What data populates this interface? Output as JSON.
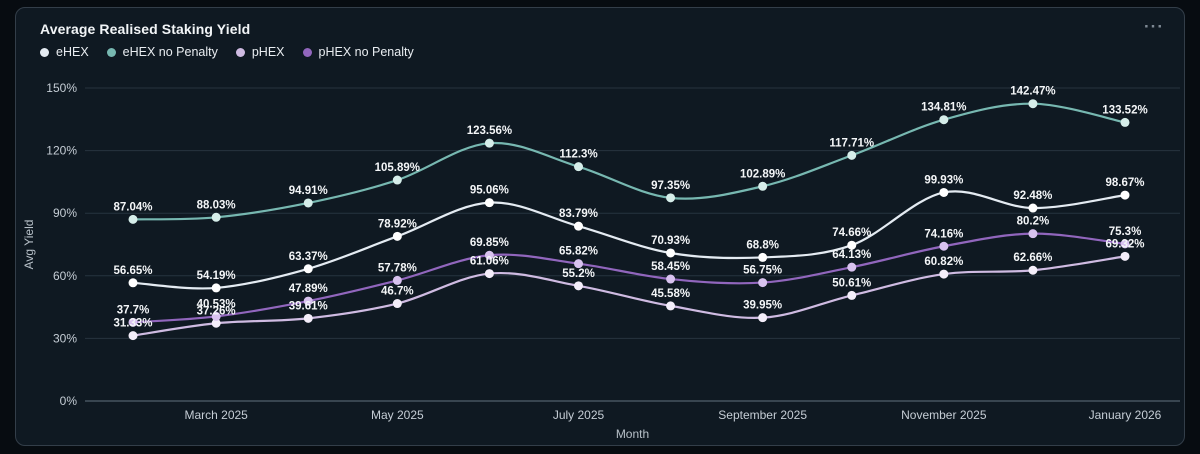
{
  "card": {
    "title": "Average Realised Staking Yield",
    "more_options_glyph": "···"
  },
  "chart_data": {
    "type": "line",
    "title": "Average Realised Staking Yield",
    "xlabel": "Month",
    "ylabel": "Avg Yield",
    "x_scale": "time",
    "n_points": 12,
    "x_tick_labels": [
      "March 2025",
      "May 2025",
      "July 2025",
      "September 2025",
      "November 2025",
      "January 2026"
    ],
    "x_tick_point_indices": [
      1,
      3,
      5,
      7,
      9,
      11
    ],
    "ylim": [
      0,
      150
    ],
    "y_tick_values": [
      0,
      30,
      60,
      90,
      120,
      150
    ],
    "y_tick_suffix": "%",
    "point_label_suffix": "%",
    "grid": "horizontal",
    "legend_position": "top-left",
    "curve": "smooth",
    "series": [
      {
        "name": "eHEX",
        "color": "#e4ebf2",
        "dot_color": "#ffffff",
        "values": [
          56.65,
          54.19,
          63.37,
          78.92,
          95.06,
          83.79,
          70.93,
          68.8,
          74.66,
          99.93,
          92.48,
          98.67
        ]
      },
      {
        "name": "eHEX no Penalty",
        "color": "#77b8b1",
        "dot_color": "#d6eeea",
        "values": [
          87.04,
          88.03,
          94.91,
          105.89,
          123.56,
          112.3,
          97.35,
          102.89,
          117.71,
          134.81,
          142.47,
          133.52
        ]
      },
      {
        "name": "pHEX",
        "color": "#cfbbe2",
        "dot_color": "#f4eefa",
        "values": [
          31.33,
          37.26,
          39.61,
          46.7,
          61.06,
          55.2,
          45.58,
          39.95,
          50.61,
          60.82,
          62.66,
          69.32
        ]
      },
      {
        "name": "pHEX no Penalty",
        "color": "#9166bd",
        "dot_color": "#d8c2ef",
        "values": [
          37.7,
          40.53,
          47.89,
          57.78,
          69.85,
          65.82,
          58.45,
          56.75,
          64.13,
          74.16,
          80.2,
          75.3
        ]
      }
    ]
  },
  "colors": {
    "page_bg": "#070c11",
    "card_bg": "#0f1922",
    "card_border": "#333e49",
    "grid_line": "#27343f",
    "axis_line": "#47545f",
    "tick_text": "#c5cdd5",
    "axis_title_text": "#b7c0c8",
    "title_text": "#f2f5f7",
    "legend_text": "#e9edf1",
    "point_label_text": "#f4f6f8",
    "menu_icon": "#7e8994"
  }
}
